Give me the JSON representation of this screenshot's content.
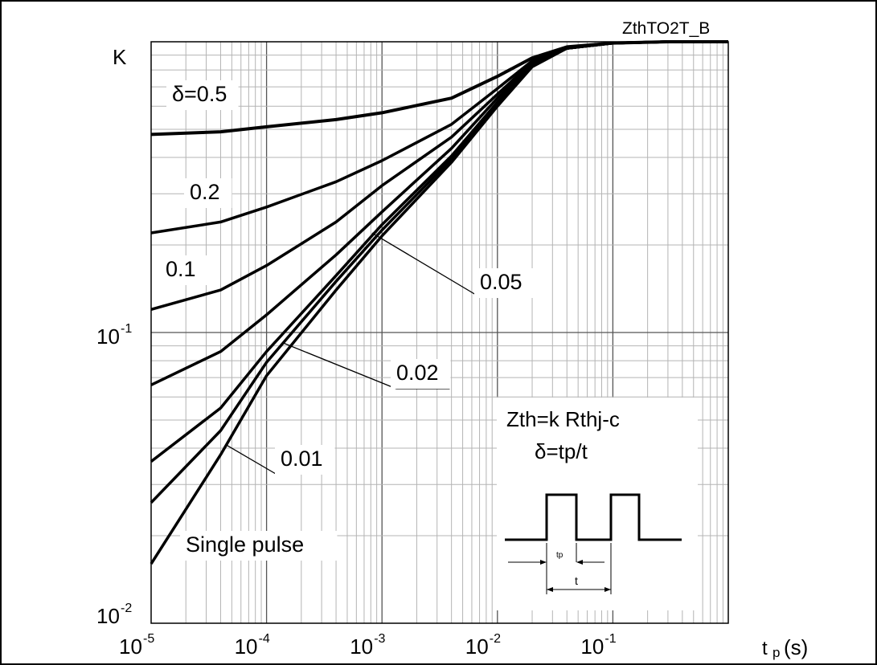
{
  "chart_data": {
    "type": "line",
    "title": "",
    "corner_label": "ZthTO2T_B",
    "x_scale": "log",
    "y_scale": "log",
    "xlim": [
      1e-05,
      1
    ],
    "ylim": [
      0.01,
      1
    ],
    "grid": true,
    "ylabel": "K",
    "xlabel_main": "t",
    "xlabel_sub": "p",
    "xlabel_unit": "(s)",
    "x_ticks": [
      {
        "value": 1e-05,
        "base": "10",
        "exp": "-5"
      },
      {
        "value": 0.0001,
        "base": "10",
        "exp": "-4"
      },
      {
        "value": 0.001,
        "base": "10",
        "exp": "-3"
      },
      {
        "value": 0.01,
        "base": "10",
        "exp": "-2"
      },
      {
        "value": 0.1,
        "base": "10",
        "exp": "-1"
      }
    ],
    "y_ticks": [
      {
        "value": 0.1,
        "base": "10",
        "exp": "-1"
      },
      {
        "value": 0.01,
        "base": "10",
        "exp": "-2"
      }
    ],
    "series": [
      {
        "name": "δ=0.5",
        "x": [
          1e-05,
          4e-05,
          0.0001,
          0.0004,
          0.001,
          0.004,
          0.01,
          0.02,
          0.04,
          0.1,
          0.3,
          1
        ],
        "y": [
          0.48,
          0.49,
          0.51,
          0.54,
          0.57,
          0.64,
          0.76,
          0.88,
          0.96,
          0.99,
          1.0,
          1.0
        ]
      },
      {
        "name": "0.2",
        "x": [
          1e-05,
          4e-05,
          0.0001,
          0.0004,
          0.001,
          0.004,
          0.01,
          0.02,
          0.04,
          0.1,
          0.3,
          1
        ],
        "y": [
          0.22,
          0.24,
          0.27,
          0.33,
          0.39,
          0.52,
          0.69,
          0.86,
          0.95,
          0.99,
          1.0,
          1.0
        ]
      },
      {
        "name": "0.1",
        "x": [
          1e-05,
          4e-05,
          0.0001,
          0.0004,
          0.001,
          0.004,
          0.01,
          0.02,
          0.04,
          0.1,
          0.3,
          1
        ],
        "y": [
          0.12,
          0.14,
          0.17,
          0.24,
          0.32,
          0.47,
          0.66,
          0.85,
          0.95,
          0.99,
          1.0,
          1.0
        ]
      },
      {
        "name": "0.05",
        "x": [
          1e-05,
          4e-05,
          0.0001,
          0.0004,
          0.001,
          0.004,
          0.01,
          0.02,
          0.04,
          0.1,
          0.3,
          1
        ],
        "y": [
          0.066,
          0.086,
          0.115,
          0.185,
          0.26,
          0.43,
          0.64,
          0.84,
          0.95,
          0.99,
          1.0,
          1.0
        ]
      },
      {
        "name": "0.02",
        "x": [
          1e-05,
          4e-05,
          0.0001,
          0.0004,
          0.001,
          0.004,
          0.01,
          0.02,
          0.04,
          0.1,
          0.3,
          1
        ],
        "y": [
          0.036,
          0.055,
          0.086,
          0.157,
          0.235,
          0.405,
          0.62,
          0.83,
          0.95,
          0.99,
          1.0,
          1.0
        ]
      },
      {
        "name": "0.01",
        "x": [
          1e-05,
          4e-05,
          0.0001,
          0.0004,
          0.001,
          0.004,
          0.01,
          0.02,
          0.04,
          0.1,
          0.3,
          1
        ],
        "y": [
          0.026,
          0.046,
          0.079,
          0.15,
          0.225,
          0.395,
          0.61,
          0.83,
          0.95,
          0.99,
          1.0,
          1.0
        ]
      },
      {
        "name": "Single pulse",
        "x": [
          1e-05,
          4e-05,
          0.0001,
          0.0004,
          0.001,
          0.004,
          0.01,
          0.02,
          0.04,
          0.1,
          0.3,
          1
        ],
        "y": [
          0.016,
          0.038,
          0.071,
          0.14,
          0.215,
          0.385,
          0.6,
          0.82,
          0.95,
          0.99,
          1.0,
          1.0
        ]
      }
    ],
    "curve_labels": [
      {
        "series": "δ=0.5",
        "text": "δ=0.5"
      },
      {
        "series": "0.2",
        "text": "0.2"
      },
      {
        "series": "0.1",
        "text": "0.1"
      },
      {
        "series": "0.05",
        "text": "0.05"
      },
      {
        "series": "0.02",
        "text": "0.02"
      },
      {
        "series": "0.01",
        "text": "0.01"
      },
      {
        "series": "Single pulse",
        "text": "Single pulse"
      }
    ],
    "annotations": {
      "formula_line1": "Zth=k Rthj-c",
      "formula_line2": "δ=tp/t",
      "pulse_tp_label": "tp",
      "pulse_t_label": "t"
    }
  }
}
